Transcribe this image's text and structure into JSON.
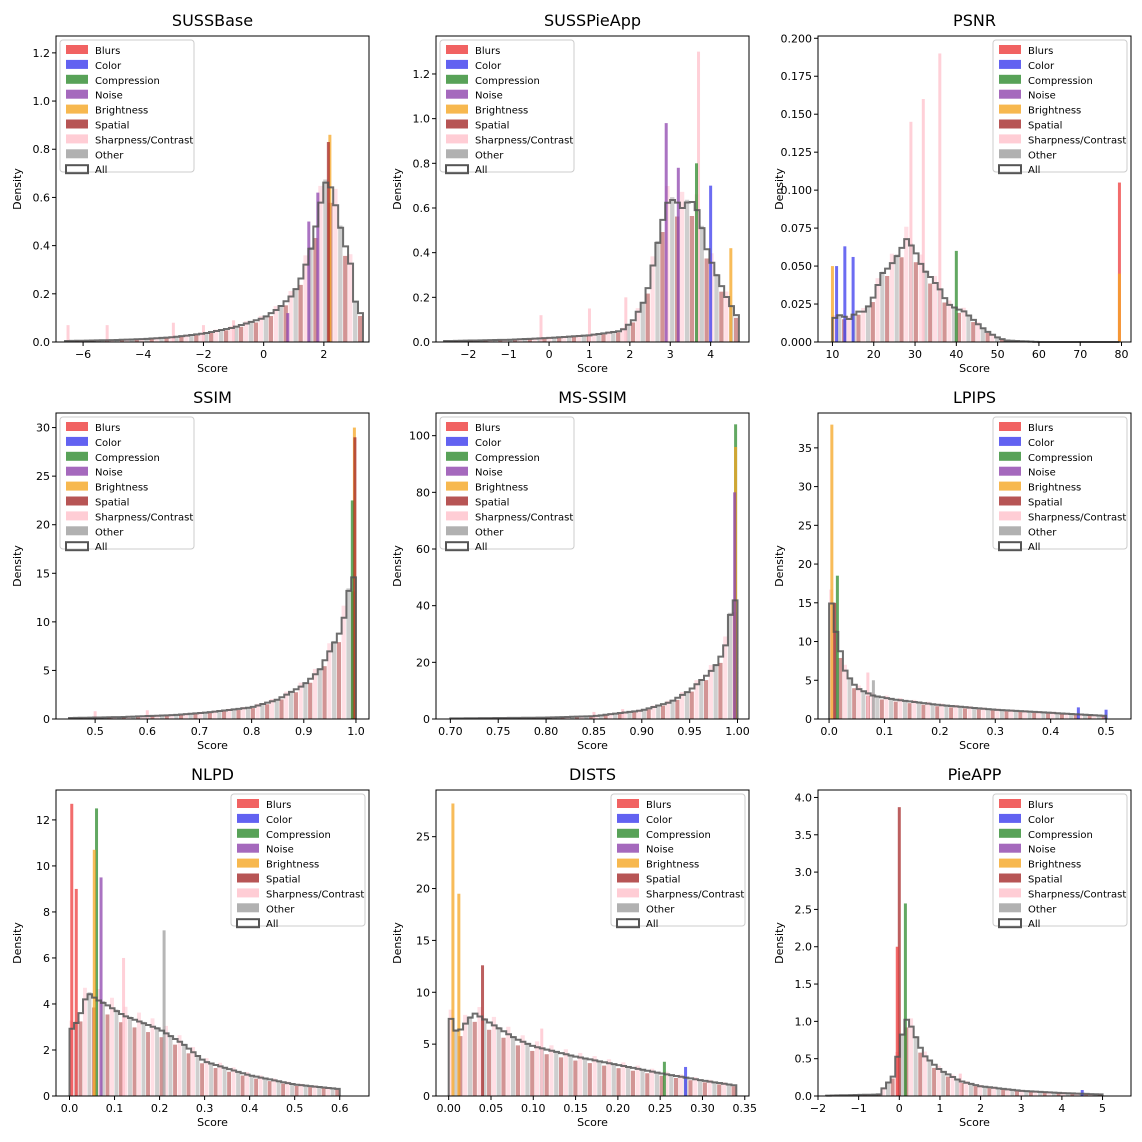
{
  "figure": {
    "legend_entries": [
      {
        "label": "Blurs",
        "color": "#ee3b3b",
        "style": "filled"
      },
      {
        "label": "Color",
        "color": "#3b3bee",
        "style": "filled"
      },
      {
        "label": "Compression",
        "color": "#2e8b2e",
        "style": "filled"
      },
      {
        "label": "Noise",
        "color": "#8e44ad",
        "style": "filled"
      },
      {
        "label": "Brightness",
        "color": "#f5a623",
        "style": "filled"
      },
      {
        "label": "Spatial",
        "color": "#a52a2a",
        "style": "filled"
      },
      {
        "label": "Sharpness/Contrast",
        "color": "#ffc0cb",
        "style": "filled"
      },
      {
        "label": "Other",
        "color": "#9e9e9e",
        "style": "filled"
      },
      {
        "label": "All",
        "color": "#555555",
        "style": "outline"
      }
    ]
  },
  "chart_data": [
    {
      "type": "histogram",
      "title": "SUSSBase",
      "xlabel": "Score",
      "ylabel": "Density",
      "xlim": [
        -6.9,
        3.5
      ],
      "ylim": [
        0,
        1.27
      ],
      "xticks": [
        -6,
        -4,
        -2,
        0,
        2
      ],
      "yticks": [
        0.0,
        0.2,
        0.4,
        0.6,
        0.8,
        1.0,
        1.2
      ],
      "xtick_labels": [
        "−6",
        "−4",
        "−2",
        "0",
        "2"
      ],
      "ytick_labels": [
        "0.0",
        "0.2",
        "0.4",
        "0.6",
        "0.8",
        "1.0",
        "1.2"
      ],
      "legend_position": "upper left",
      "all_points": [
        [
          -6.6,
          0.004
        ],
        [
          -5.0,
          0.008
        ],
        [
          -4.0,
          0.012
        ],
        [
          -3.0,
          0.02
        ],
        [
          -2.0,
          0.035
        ],
        [
          -1.0,
          0.06
        ],
        [
          0.0,
          0.1
        ],
        [
          0.5,
          0.14
        ],
        [
          1.0,
          0.2
        ],
        [
          1.3,
          0.28
        ],
        [
          1.6,
          0.4
        ],
        [
          1.9,
          0.58
        ],
        [
          2.1,
          0.68
        ],
        [
          2.3,
          0.62
        ],
        [
          2.6,
          0.45
        ],
        [
          2.9,
          0.32
        ],
        [
          3.1,
          0.12
        ],
        [
          3.3,
          0.12
        ]
      ],
      "spikes": [
        [
          "Noise",
          1.5,
          0.5
        ],
        [
          "Noise",
          1.8,
          0.62
        ],
        [
          "Noise",
          0.8,
          0.12
        ],
        [
          "Brightness",
          2.2,
          0.86
        ],
        [
          "Spatial",
          2.15,
          0.83
        ],
        [
          "Sharpness/Contrast",
          -6.5,
          0.07
        ],
        [
          "Sharpness/Contrast",
          -5.2,
          0.07
        ],
        [
          "Sharpness/Contrast",
          -3.0,
          0.08
        ],
        [
          "Sharpness/Contrast",
          -2.0,
          0.07
        ],
        [
          "Sharpness/Contrast",
          -1.0,
          0.09
        ]
      ]
    },
    {
      "type": "histogram",
      "title": "SUSSPieApp",
      "xlabel": "Score",
      "ylabel": "Density",
      "xlim": [
        -2.8,
        4.95
      ],
      "ylim": [
        0,
        1.37
      ],
      "xticks": [
        -2,
        -1,
        0,
        1,
        2,
        3,
        4
      ],
      "yticks": [
        0.0,
        0.2,
        0.4,
        0.6,
        0.8,
        1.0,
        1.2
      ],
      "xtick_labels": [
        "−2",
        "−1",
        "0",
        "1",
        "2",
        "3",
        "4"
      ],
      "ytick_labels": [
        "0.0",
        "0.2",
        "0.4",
        "0.6",
        "0.8",
        "1.0",
        "1.2"
      ],
      "legend_position": "upper left",
      "all_points": [
        [
          -2.6,
          0.004
        ],
        [
          -1.0,
          0.01
        ],
        [
          0.0,
          0.018
        ],
        [
          1.0,
          0.03
        ],
        [
          1.8,
          0.05
        ],
        [
          2.1,
          0.1
        ],
        [
          2.4,
          0.2
        ],
        [
          2.7,
          0.45
        ],
        [
          2.9,
          0.62
        ],
        [
          3.1,
          0.64
        ],
        [
          3.3,
          0.6
        ],
        [
          3.5,
          0.64
        ],
        [
          3.7,
          0.58
        ],
        [
          3.9,
          0.42
        ],
        [
          4.1,
          0.32
        ],
        [
          4.4,
          0.2
        ],
        [
          4.7,
          0.1
        ]
      ],
      "spikes": [
        [
          "Noise",
          2.9,
          0.98
        ],
        [
          "Noise",
          3.2,
          0.78
        ],
        [
          "Sharpness/Contrast",
          3.7,
          1.3
        ],
        [
          "Compression",
          3.65,
          0.8
        ],
        [
          "Color",
          4.0,
          0.7
        ],
        [
          "Brightness",
          4.5,
          0.42
        ],
        [
          "Sharpness/Contrast",
          -0.2,
          0.12
        ],
        [
          "Sharpness/Contrast",
          1.0,
          0.15
        ],
        [
          "Sharpness/Contrast",
          1.9,
          0.2
        ]
      ]
    },
    {
      "type": "histogram",
      "title": "PSNR",
      "xlabel": "Score",
      "ylabel": "Density",
      "xlim": [
        6.5,
        82.3
      ],
      "ylim": [
        0,
        0.2015
      ],
      "xticks": [
        10,
        20,
        30,
        40,
        50,
        60,
        70,
        80
      ],
      "yticks": [
        0.0,
        0.025,
        0.05,
        0.075,
        0.1,
        0.125,
        0.15,
        0.175,
        0.2
      ],
      "xtick_labels": [
        "10",
        "20",
        "30",
        "40",
        "50",
        "60",
        "70",
        "80"
      ],
      "ytick_labels": [
        "0.000",
        "0.025",
        "0.050",
        "0.075",
        "0.100",
        "0.125",
        "0.150",
        "0.175",
        "0.200"
      ],
      "legend_position": "upper right",
      "all_points": [
        [
          10,
          0.015
        ],
        [
          12,
          0.018
        ],
        [
          14,
          0.015
        ],
        [
          16,
          0.02
        ],
        [
          18,
          0.02
        ],
        [
          20,
          0.03
        ],
        [
          22,
          0.045
        ],
        [
          24,
          0.05
        ],
        [
          26,
          0.058
        ],
        [
          28,
          0.068
        ],
        [
          30,
          0.06
        ],
        [
          32,
          0.048
        ],
        [
          34,
          0.042
        ],
        [
          36,
          0.035
        ],
        [
          38,
          0.025
        ],
        [
          40,
          0.022
        ],
        [
          42,
          0.02
        ],
        [
          44,
          0.015
        ],
        [
          46,
          0.01
        ],
        [
          48,
          0.006
        ],
        [
          50,
          0.003
        ],
        [
          52,
          0.001
        ],
        [
          60,
          0.0
        ],
        [
          79,
          0.0
        ],
        [
          79.5,
          0.02
        ]
      ],
      "spikes": [
        [
          "Color",
          13,
          0.063
        ],
        [
          "Color",
          15,
          0.056
        ],
        [
          "Color",
          11,
          0.05
        ],
        [
          "Brightness",
          10,
          0.05
        ],
        [
          "Blurs",
          79.5,
          0.105
        ],
        [
          "Brightness",
          79.5,
          0.045
        ],
        [
          "Sharpness/Contrast",
          29,
          0.145
        ],
        [
          "Sharpness/Contrast",
          36,
          0.19
        ],
        [
          "Sharpness/Contrast",
          32,
          0.16
        ],
        [
          "Compression",
          40,
          0.06
        ]
      ]
    },
    {
      "type": "histogram",
      "title": "SSIM",
      "xlabel": "Score",
      "ylabel": "Density",
      "xlim": [
        0.425,
        1.025
      ],
      "ylim": [
        0,
        31.5
      ],
      "xticks": [
        0.5,
        0.6,
        0.7,
        0.8,
        0.9,
        1.0
      ],
      "yticks": [
        0,
        5,
        10,
        15,
        20,
        25,
        30
      ],
      "xtick_labels": [
        "0.5",
        "0.6",
        "0.7",
        "0.8",
        "0.9",
        "1.0"
      ],
      "ytick_labels": [
        "0",
        "5",
        "10",
        "15",
        "20",
        "25",
        "30"
      ],
      "legend_position": "upper left",
      "all_points": [
        [
          0.45,
          0.1
        ],
        [
          0.55,
          0.2
        ],
        [
          0.65,
          0.4
        ],
        [
          0.72,
          0.7
        ],
        [
          0.8,
          1.2
        ],
        [
          0.85,
          2.0
        ],
        [
          0.9,
          3.5
        ],
        [
          0.93,
          5.0
        ],
        [
          0.95,
          7.0
        ],
        [
          0.97,
          9.0
        ],
        [
          0.98,
          11.0
        ],
        [
          0.99,
          14.5
        ],
        [
          0.995,
          15.0
        ],
        [
          1.0,
          10.0
        ]
      ],
      "spikes": [
        [
          "Brightness",
          0.997,
          30.0
        ],
        [
          "Compression",
          0.993,
          22.5
        ],
        [
          "Spatial",
          0.998,
          29.0
        ],
        [
          "Sharpness/Contrast",
          0.5,
          0.8
        ],
        [
          "Sharpness/Contrast",
          0.6,
          0.9
        ]
      ]
    },
    {
      "type": "histogram",
      "title": "MS-SSIM",
      "xlabel": "Score",
      "ylabel": "Density",
      "xlim": [
        0.685,
        1.012
      ],
      "ylim": [
        0,
        108
      ],
      "xticks": [
        0.7,
        0.75,
        0.8,
        0.85,
        0.9,
        0.95,
        1.0
      ],
      "yticks": [
        0,
        20,
        40,
        60,
        80,
        100
      ],
      "xtick_labels": [
        "0.70",
        "0.75",
        "0.80",
        "0.85",
        "0.90",
        "0.95",
        "1.00"
      ],
      "ytick_labels": [
        "0",
        "20",
        "40",
        "60",
        "80",
        "100"
      ],
      "legend_position": "upper left",
      "all_points": [
        [
          0.7,
          0.2
        ],
        [
          0.8,
          0.5
        ],
        [
          0.85,
          1.0
        ],
        [
          0.9,
          3.0
        ],
        [
          0.93,
          6.0
        ],
        [
          0.95,
          10.0
        ],
        [
          0.97,
          16.0
        ],
        [
          0.98,
          20.0
        ],
        [
          0.99,
          28.0
        ],
        [
          0.996,
          49.0
        ],
        [
          1.0,
          30.0
        ]
      ],
      "spikes": [
        [
          "Compression",
          0.998,
          104
        ],
        [
          "Brightness",
          0.998,
          96
        ],
        [
          "Noise",
          0.997,
          80
        ],
        [
          "Sharpness/Contrast",
          0.85,
          2.5
        ],
        [
          "Sharpness/Contrast",
          0.88,
          3.5
        ]
      ]
    },
    {
      "type": "histogram",
      "title": "LPIPS",
      "xlabel": "Score",
      "ylabel": "Density",
      "xlim": [
        -0.02,
        0.545
      ],
      "ylim": [
        0,
        39.5
      ],
      "xticks": [
        0.0,
        0.1,
        0.2,
        0.3,
        0.4,
        0.5
      ],
      "yticks": [
        0,
        5,
        10,
        15,
        20,
        25,
        30,
        35
      ],
      "xtick_labels": [
        "0.0",
        "0.1",
        "0.2",
        "0.3",
        "0.4",
        "0.5"
      ],
      "ytick_labels": [
        "0",
        "5",
        "10",
        "15",
        "20",
        "25",
        "30",
        "35"
      ],
      "legend_position": "upper right",
      "all_points": [
        [
          0.0,
          17.0
        ],
        [
          0.01,
          12.0
        ],
        [
          0.02,
          9.0
        ],
        [
          0.03,
          6.0
        ],
        [
          0.05,
          4.0
        ],
        [
          0.08,
          3.0
        ],
        [
          0.12,
          2.5
        ],
        [
          0.2,
          1.8
        ],
        [
          0.3,
          1.2
        ],
        [
          0.4,
          0.8
        ],
        [
          0.5,
          0.4
        ]
      ],
      "spikes": [
        [
          "Brightness",
          0.005,
          38.0
        ],
        [
          "Compression",
          0.015,
          18.5
        ],
        [
          "Spatial",
          0.01,
          15.0
        ],
        [
          "Color",
          0.45,
          1.5
        ],
        [
          "Color",
          0.5,
          1.2
        ],
        [
          "Sharpness/Contrast",
          0.07,
          6.0
        ],
        [
          "Other",
          0.08,
          5.0
        ]
      ]
    },
    {
      "type": "histogram",
      "title": "NLPD",
      "xlabel": "Score",
      "ylabel": "Density",
      "xlim": [
        -0.03,
        0.665
      ],
      "ylim": [
        0,
        13.3
      ],
      "xticks": [
        0.0,
        0.1,
        0.2,
        0.3,
        0.4,
        0.5,
        0.6
      ],
      "yticks": [
        0,
        2,
        4,
        6,
        8,
        10,
        12
      ],
      "xtick_labels": [
        "0.0",
        "0.1",
        "0.2",
        "0.3",
        "0.4",
        "0.5",
        "0.6"
      ],
      "ytick_labels": [
        "0",
        "2",
        "4",
        "6",
        "8",
        "10",
        "12"
      ],
      "legend_position": "upper right",
      "all_points": [
        [
          0.0,
          2.8
        ],
        [
          0.02,
          3.3
        ],
        [
          0.04,
          4.5
        ],
        [
          0.06,
          4.2
        ],
        [
          0.08,
          4.0
        ],
        [
          0.12,
          3.5
        ],
        [
          0.16,
          3.2
        ],
        [
          0.2,
          2.9
        ],
        [
          0.25,
          2.3
        ],
        [
          0.3,
          1.5
        ],
        [
          0.4,
          0.9
        ],
        [
          0.5,
          0.5
        ],
        [
          0.6,
          0.3
        ]
      ],
      "spikes": [
        [
          "Blurs",
          0.005,
          12.7
        ],
        [
          "Blurs",
          0.015,
          9.0
        ],
        [
          "Compression",
          0.06,
          12.5
        ],
        [
          "Brightness",
          0.055,
          10.7
        ],
        [
          "Noise",
          0.07,
          9.5
        ],
        [
          "Other",
          0.21,
          7.2
        ],
        [
          "Sharpness/Contrast",
          0.12,
          6.0
        ]
      ]
    },
    {
      "type": "histogram",
      "title": "DISTS",
      "xlabel": "Score",
      "ylabel": "Density",
      "xlim": [
        -0.015,
        0.355
      ],
      "ylim": [
        0,
        29.5
      ],
      "xticks": [
        0.0,
        0.05,
        0.1,
        0.15,
        0.2,
        0.25,
        0.3,
        0.35
      ],
      "yticks": [
        0,
        5,
        10,
        15,
        20,
        25
      ],
      "xtick_labels": [
        "0.00",
        "0.05",
        "0.10",
        "0.15",
        "0.20",
        "0.25",
        "0.30",
        "0.35"
      ],
      "ytick_labels": [
        "0",
        "5",
        "10",
        "15",
        "20",
        "25"
      ],
      "legend_position": "upper right",
      "all_points": [
        [
          0.0,
          8.0
        ],
        [
          0.01,
          6.0
        ],
        [
          0.02,
          7.0
        ],
        [
          0.03,
          8.0
        ],
        [
          0.05,
          7.0
        ],
        [
          0.08,
          5.5
        ],
        [
          0.1,
          4.8
        ],
        [
          0.15,
          3.8
        ],
        [
          0.2,
          3.0
        ],
        [
          0.25,
          2.2
        ],
        [
          0.3,
          1.5
        ],
        [
          0.34,
          1.0
        ]
      ],
      "spikes": [
        [
          "Brightness",
          0.005,
          28.2
        ],
        [
          "Brightness",
          0.012,
          19.5
        ],
        [
          "Spatial",
          0.04,
          12.6
        ],
        [
          "Color",
          0.28,
          2.8
        ],
        [
          "Compression",
          0.255,
          3.3
        ],
        [
          "Sharpness/Contrast",
          0.11,
          6.5
        ]
      ]
    },
    {
      "type": "histogram",
      "title": "PieAPP",
      "xlabel": "Score",
      "ylabel": "Density",
      "xlim": [
        -2.0,
        5.7
      ],
      "ylim": [
        0,
        4.1
      ],
      "xticks": [
        -2,
        -1,
        0,
        1,
        2,
        3,
        4,
        5
      ],
      "yticks": [
        0.0,
        0.5,
        1.0,
        1.5,
        2.0,
        2.5,
        3.0,
        3.5,
        4.0
      ],
      "xtick_labels": [
        "−2",
        "−1",
        "0",
        "1",
        "2",
        "3",
        "4",
        "5"
      ],
      "ytick_labels": [
        "0.0",
        "0.5",
        "1.0",
        "1.5",
        "2.0",
        "2.5",
        "3.0",
        "3.5",
        "4.0"
      ],
      "legend_position": "upper right",
      "all_points": [
        [
          -1.8,
          0.005
        ],
        [
          -0.5,
          0.02
        ],
        [
          -0.1,
          0.3
        ],
        [
          0.0,
          0.7
        ],
        [
          0.2,
          1.05
        ],
        [
          0.4,
          0.8
        ],
        [
          0.6,
          0.55
        ],
        [
          1.0,
          0.35
        ],
        [
          1.5,
          0.2
        ],
        [
          2.0,
          0.13
        ],
        [
          3.0,
          0.07
        ],
        [
          4.0,
          0.04
        ],
        [
          5.0,
          0.02
        ]
      ],
      "spikes": [
        [
          "Spatial",
          0.0,
          3.87
        ],
        [
          "Compression",
          0.15,
          2.58
        ],
        [
          "Blurs",
          -0.05,
          2.0
        ],
        [
          "Color",
          4.5,
          0.08
        ],
        [
          "Sharpness/Contrast",
          1.5,
          0.3
        ]
      ]
    }
  ]
}
